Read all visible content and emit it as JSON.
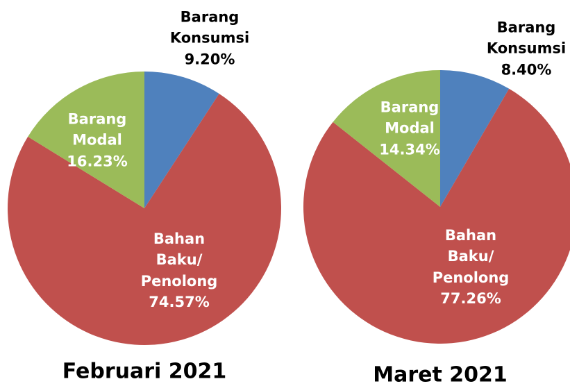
{
  "chart_data": [
    {
      "type": "pie",
      "title": "Februari 2021",
      "categories": [
        "Barang Konsumsi",
        "Bahan Baku/ Penolong",
        "Barang Modal"
      ],
      "values": [
        9.2,
        74.57,
        16.23
      ],
      "value_labels": [
        "9.20%",
        "74.57%",
        "16.23%"
      ],
      "colors": [
        "#4f81bd",
        "#c0504d",
        "#9bbb59"
      ]
    },
    {
      "type": "pie",
      "title": "Maret 2021",
      "categories": [
        "Barang Konsumsi",
        "Bahan Baku/ Penolong",
        "Barang Modal"
      ],
      "values": [
        8.4,
        77.26,
        14.34
      ],
      "value_labels": [
        "8.40%",
        "77.26%",
        "14.34%"
      ],
      "colors": [
        "#4f81bd",
        "#c0504d",
        "#9bbb59"
      ]
    }
  ]
}
